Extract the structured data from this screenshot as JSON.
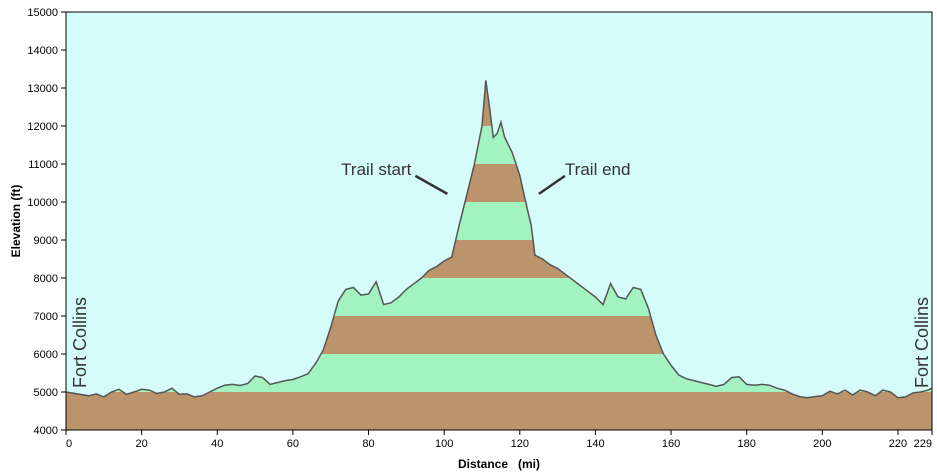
{
  "chart_data": {
    "type": "area",
    "xlabel": "Distance   (mi)",
    "ylabel": "Elevation (ft)",
    "xlim": [
      0,
      229
    ],
    "ylim": [
      4000,
      15000
    ],
    "x_ticks": [
      0,
      20,
      40,
      60,
      80,
      100,
      120,
      140,
      160,
      180,
      200,
      220,
      229
    ],
    "y_ticks": [
      4000,
      5000,
      6000,
      7000,
      8000,
      9000,
      10000,
      11000,
      12000,
      13000,
      14000,
      15000
    ],
    "band_size_ft": 1000,
    "grid": false,
    "colors": {
      "background": "#d6fbfb",
      "band_green": "#a3f3c1",
      "band_brown": "#bb946b",
      "line": "#555555",
      "text": "#333333"
    },
    "annotations": [
      {
        "text": "Trail start",
        "x": 103.5,
        "y": 9950
      },
      {
        "text": "Trail end",
        "x": 124,
        "y": 9950
      }
    ],
    "endpoint_labels": {
      "left": "Fort Collins",
      "right": "Fort Collins"
    },
    "profile": [
      [
        0,
        5000
      ],
      [
        3,
        4950
      ],
      [
        6,
        4900
      ],
      [
        8,
        4950
      ],
      [
        10,
        4870
      ],
      [
        12,
        5000
      ],
      [
        14,
        5070
      ],
      [
        16,
        4940
      ],
      [
        18,
        5000
      ],
      [
        20,
        5070
      ],
      [
        22,
        5050
      ],
      [
        24,
        4960
      ],
      [
        26,
        5000
      ],
      [
        28,
        5100
      ],
      [
        30,
        4940
      ],
      [
        32,
        4950
      ],
      [
        34,
        4870
      ],
      [
        36,
        4900
      ],
      [
        38,
        5000
      ],
      [
        40,
        5100
      ],
      [
        42,
        5180
      ],
      [
        44,
        5200
      ],
      [
        46,
        5170
      ],
      [
        48,
        5220
      ],
      [
        50,
        5420
      ],
      [
        52,
        5380
      ],
      [
        54,
        5200
      ],
      [
        56,
        5250
      ],
      [
        58,
        5300
      ],
      [
        60,
        5330
      ],
      [
        62,
        5400
      ],
      [
        64,
        5480
      ],
      [
        66,
        5750
      ],
      [
        68,
        6100
      ],
      [
        70,
        6700
      ],
      [
        72,
        7400
      ],
      [
        74,
        7700
      ],
      [
        76,
        7750
      ],
      [
        78,
        7550
      ],
      [
        80,
        7580
      ],
      [
        82,
        7900
      ],
      [
        84,
        7300
      ],
      [
        86,
        7350
      ],
      [
        88,
        7500
      ],
      [
        90,
        7700
      ],
      [
        92,
        7850
      ],
      [
        94,
        8000
      ],
      [
        96,
        8200
      ],
      [
        98,
        8300
      ],
      [
        100,
        8450
      ],
      [
        102,
        8550
      ],
      [
        104,
        9400
      ],
      [
        106,
        10200
      ],
      [
        108,
        11000
      ],
      [
        110,
        12000
      ],
      [
        111,
        13200
      ],
      [
        112,
        12500
      ],
      [
        113,
        11700
      ],
      [
        114,
        11800
      ],
      [
        115,
        12100
      ],
      [
        116,
        11700
      ],
      [
        118,
        11300
      ],
      [
        120,
        10700
      ],
      [
        122,
        9800
      ],
      [
        123,
        9400
      ],
      [
        124,
        8600
      ],
      [
        126,
        8500
      ],
      [
        128,
        8350
      ],
      [
        130,
        8250
      ],
      [
        132,
        8100
      ],
      [
        134,
        7950
      ],
      [
        136,
        7800
      ],
      [
        138,
        7650
      ],
      [
        140,
        7500
      ],
      [
        142,
        7300
      ],
      [
        144,
        7850
      ],
      [
        146,
        7500
      ],
      [
        148,
        7450
      ],
      [
        150,
        7750
      ],
      [
        152,
        7700
      ],
      [
        154,
        7200
      ],
      [
        156,
        6500
      ],
      [
        158,
        6000
      ],
      [
        160,
        5700
      ],
      [
        162,
        5450
      ],
      [
        164,
        5350
      ],
      [
        166,
        5300
      ],
      [
        168,
        5250
      ],
      [
        170,
        5200
      ],
      [
        172,
        5150
      ],
      [
        174,
        5200
      ],
      [
        176,
        5380
      ],
      [
        178,
        5400
      ],
      [
        180,
        5200
      ],
      [
        182,
        5180
      ],
      [
        184,
        5200
      ],
      [
        186,
        5180
      ],
      [
        188,
        5100
      ],
      [
        190,
        5050
      ],
      [
        192,
        4950
      ],
      [
        194,
        4880
      ],
      [
        196,
        4850
      ],
      [
        198,
        4880
      ],
      [
        200,
        4900
      ],
      [
        202,
        5020
      ],
      [
        204,
        4950
      ],
      [
        206,
        5050
      ],
      [
        208,
        4920
      ],
      [
        210,
        5050
      ],
      [
        212,
        5000
      ],
      [
        214,
        4900
      ],
      [
        216,
        5050
      ],
      [
        218,
        5000
      ],
      [
        220,
        4850
      ],
      [
        222,
        4870
      ],
      [
        224,
        4980
      ],
      [
        226,
        5000
      ],
      [
        228,
        5050
      ],
      [
        229,
        5100
      ]
    ]
  }
}
